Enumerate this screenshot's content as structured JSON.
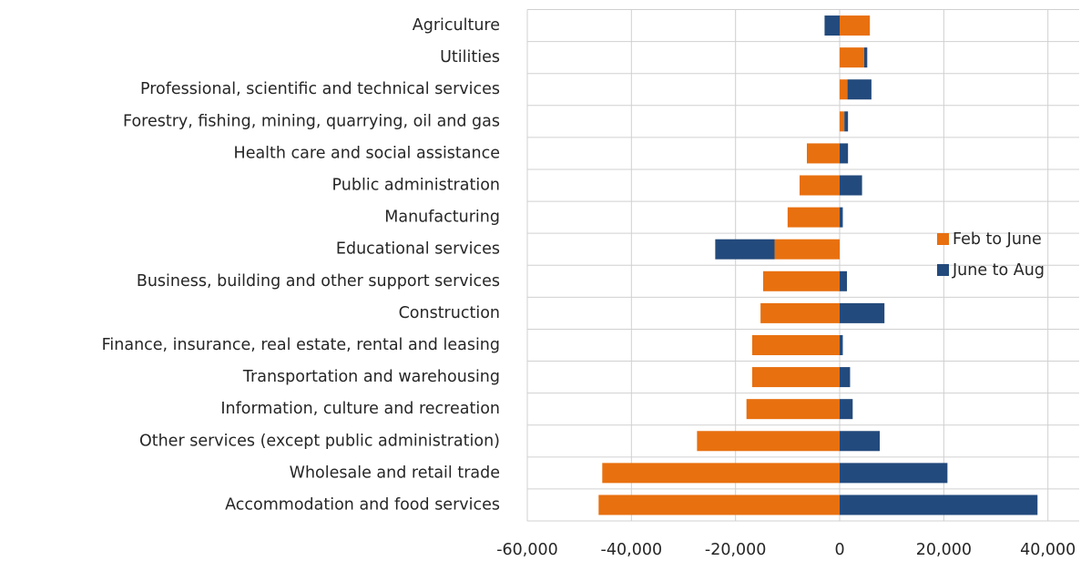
{
  "chart_data": {
    "type": "bar",
    "orientation": "horizontal",
    "stacked": true,
    "categories": [
      "Agriculture",
      "Utilities",
      "Professional, scientific and technical services",
      "Forestry, fishing, mining, quarrying, oil and gas",
      "Health care and social assistance",
      "Public administration",
      "Manufacturing",
      "Educational services",
      "Business, building and other support services",
      "Construction",
      "Finance, insurance, real estate, rental and leasing",
      "Transportation and warehousing",
      "Information, culture and recreation",
      "Other services (except public administration)",
      "Wholesale and retail trade",
      "Accommodation and food services"
    ],
    "series": [
      {
        "name": "Feb to June",
        "color": "#e8700f",
        "values": [
          5800,
          4700,
          1500,
          900,
          -6300,
          -7700,
          -10000,
          -12500,
          -14700,
          -15200,
          -16800,
          -16800,
          -17900,
          -27400,
          -45600,
          -46300
        ]
      },
      {
        "name": "June to Aug",
        "color": "#234a7c",
        "values": [
          -2900,
          600,
          4600,
          700,
          1600,
          4300,
          600,
          -11400,
          1400,
          8600,
          600,
          2000,
          2500,
          7700,
          20700,
          38000
        ]
      }
    ],
    "xlim": [
      -60000,
      46000
    ],
    "xticks": [
      {
        "value": -60000,
        "label": "-60,000"
      },
      {
        "value": -40000,
        "label": "-40,000"
      },
      {
        "value": -20000,
        "label": "-20,000"
      },
      0,
      {
        "value": 20000,
        "label": "20,000"
      },
      {
        "value": 40000,
        "label": "40,000"
      }
    ],
    "grid": true,
    "legend": "right"
  }
}
